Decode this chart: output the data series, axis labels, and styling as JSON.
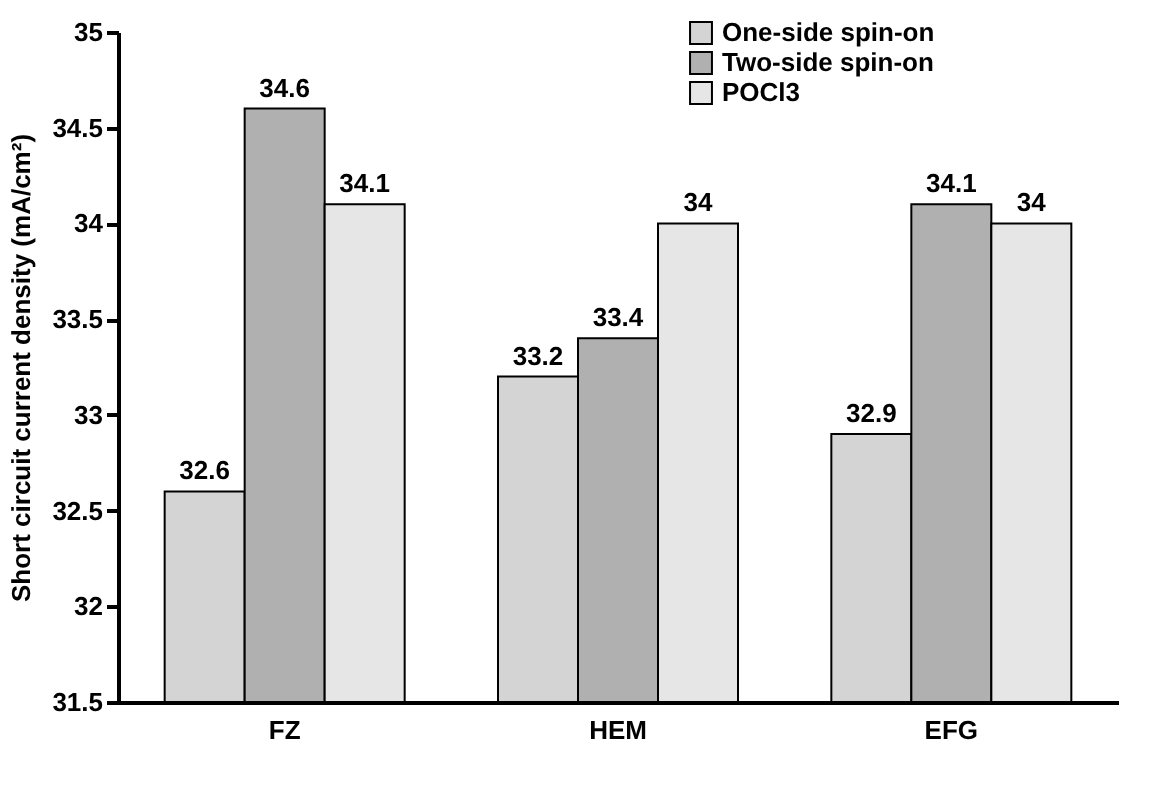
{
  "chart_data": {
    "type": "bar",
    "ylabel": "Short circuit current density (mA/cm²)",
    "categories": [
      "FZ",
      "HEM",
      "EFG"
    ],
    "series": [
      {
        "name": "One-side spin-on",
        "color": "#d4d4d4",
        "values": [
          32.6,
          33.2,
          32.9
        ]
      },
      {
        "name": "Two-side spin-on",
        "color": "#b0b0b0",
        "values": [
          34.6,
          33.4,
          34.1
        ]
      },
      {
        "name": "POCl3",
        "color": "#e6e6e6",
        "values": [
          34.1,
          34,
          34
        ]
      }
    ],
    "ylim": [
      31.5,
      35
    ],
    "yticks": [
      31.5,
      32,
      32.5,
      33,
      33.5,
      34,
      34.5,
      35
    ],
    "data_labels": true,
    "legend": "top right",
    "grid": false
  }
}
